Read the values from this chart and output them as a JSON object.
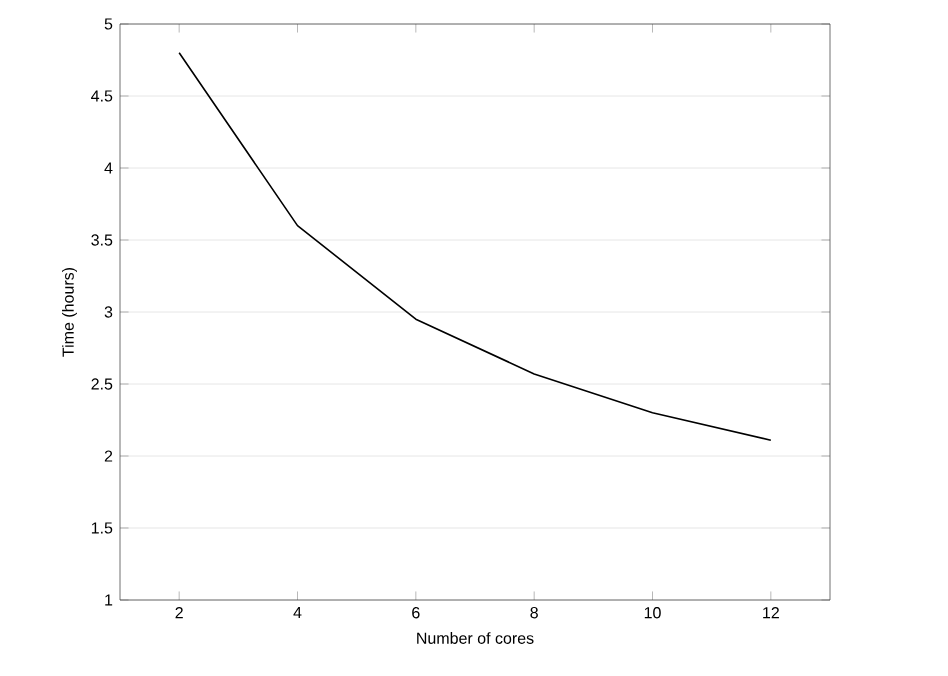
{
  "chart_data": {
    "type": "line",
    "xlabel": "Number of cores",
    "ylabel": "Time (hours)",
    "x": [
      2,
      4,
      6,
      8,
      10,
      12
    ],
    "series": [
      {
        "color": "#000000",
        "values": [
          4.8,
          3.6,
          2.95,
          2.57,
          2.3,
          2.11
        ]
      }
    ],
    "xlim": [
      1,
      13
    ],
    "ylim": [
      1,
      5
    ],
    "xticks": [
      2,
      4,
      6,
      8,
      10,
      12
    ],
    "yticks": [
      1,
      1.5,
      2,
      2.5,
      3,
      3.5,
      4,
      4.5,
      5
    ],
    "grid": "y",
    "marker": "none",
    "line_style": "solid"
  }
}
